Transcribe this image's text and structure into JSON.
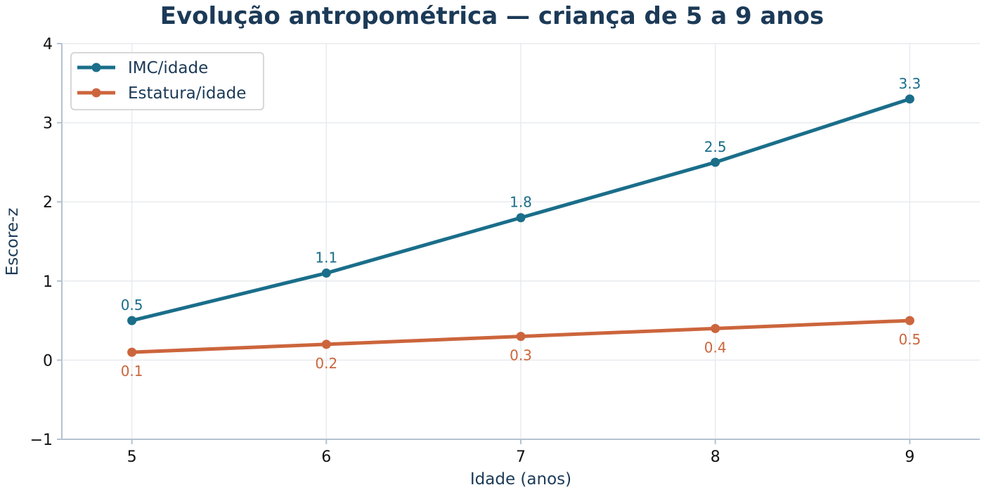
{
  "chart_data": {
    "type": "line",
    "title": "Evolução antropométrica — criança de 5 a 9 anos",
    "xlabel": "Idade (anos)",
    "ylabel": "Escore-z",
    "x": [
      5,
      6,
      7,
      8,
      9
    ],
    "xticks": [
      "5",
      "6",
      "7",
      "8",
      "9"
    ],
    "xlim": [
      4.64,
      9.36
    ],
    "ylim": [
      -1,
      4
    ],
    "yticks": [
      -1,
      0,
      1,
      2,
      3,
      4
    ],
    "ytick_labels": [
      "−1",
      "0",
      "1",
      "2",
      "3",
      "4"
    ],
    "grid": true,
    "legend_position": "top-left",
    "series": [
      {
        "name": "IMC/idade",
        "color": "#1a6e8a",
        "values": [
          0.5,
          1.1,
          1.8,
          2.5,
          3.3
        ],
        "labels": [
          "0.5",
          "1.1",
          "1.8",
          "2.5",
          "3.3"
        ],
        "label_position": "above"
      },
      {
        "name": "Estatura/idade",
        "color": "#cc653c",
        "values": [
          0.1,
          0.2,
          0.3,
          0.4,
          0.5
        ],
        "labels": [
          "0.1",
          "0.2",
          "0.3",
          "0.4",
          "0.5"
        ],
        "label_position": "below"
      }
    ]
  }
}
